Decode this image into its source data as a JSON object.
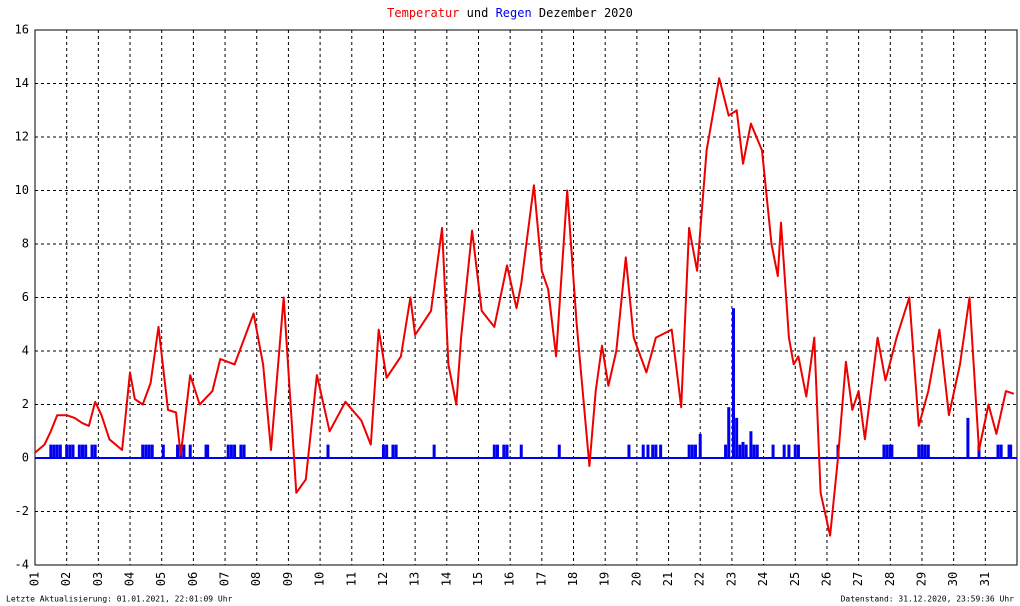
{
  "chart_data": {
    "type": "line",
    "title": [
      "Temperatur",
      "und",
      "Regen",
      "Dezember 2020"
    ],
    "footer": {
      "left": "Letzte Aktualisierung: 01.01.2021, 22:01:09 Uhr",
      "right": "Datenstand: 31.12.2020, 23:59:36 Uhr"
    },
    "xlim": [
      1,
      32
    ],
    "xticks": [
      {
        "value": 1,
        "label": "01"
      },
      {
        "value": 2,
        "label": "02"
      },
      {
        "value": 3,
        "label": "03"
      },
      {
        "value": 4,
        "label": "04"
      },
      {
        "value": 5,
        "label": "05"
      },
      {
        "value": 6,
        "label": "06"
      },
      {
        "value": 7,
        "label": "07"
      },
      {
        "value": 8,
        "label": "08"
      },
      {
        "value": 9,
        "label": "09"
      },
      {
        "value": 10,
        "label": "10"
      },
      {
        "value": 11,
        "label": "11"
      },
      {
        "value": 12,
        "label": "12"
      },
      {
        "value": 13,
        "label": "13"
      },
      {
        "value": 14,
        "label": "14"
      },
      {
        "value": 15,
        "label": "15"
      },
      {
        "value": 16,
        "label": "16"
      },
      {
        "value": 17,
        "label": "17"
      },
      {
        "value": 18,
        "label": "18"
      },
      {
        "value": 19,
        "label": "19"
      },
      {
        "value": 20,
        "label": "20"
      },
      {
        "value": 21,
        "label": "21"
      },
      {
        "value": 22,
        "label": "22"
      },
      {
        "value": 23,
        "label": "23"
      },
      {
        "value": 24,
        "label": "24"
      },
      {
        "value": 25,
        "label": "25"
      },
      {
        "value": 26,
        "label": "26"
      },
      {
        "value": 27,
        "label": "27"
      },
      {
        "value": 28,
        "label": "28"
      },
      {
        "value": 29,
        "label": "29"
      },
      {
        "value": 30,
        "label": "30"
      },
      {
        "value": 31,
        "label": "31"
      }
    ],
    "ylim": [
      -4,
      16
    ],
    "yticks": [
      -4,
      -2,
      0,
      2,
      4,
      6,
      8,
      10,
      12,
      14,
      16
    ],
    "grid": true,
    "series": [
      {
        "name": "Temperatur",
        "color": "#ee0000",
        "type": "line",
        "x": [
          1.0,
          1.3,
          1.5,
          1.7,
          2.0,
          2.25,
          2.5,
          2.7,
          2.9,
          3.1,
          3.35,
          3.75,
          4.0,
          4.15,
          4.4,
          4.65,
          4.9,
          5.2,
          5.45,
          5.6,
          5.9,
          6.2,
          6.6,
          6.85,
          7.3,
          7.9,
          8.2,
          8.45,
          8.85,
          9.25,
          9.55,
          9.9,
          10.3,
          10.8,
          11.3,
          11.6,
          11.85,
          12.1,
          12.55,
          12.85,
          13.0,
          13.5,
          13.85,
          14.05,
          14.3,
          14.45,
          14.8,
          15.1,
          15.5,
          15.9,
          16.2,
          16.35,
          16.75,
          17.0,
          17.2,
          17.45,
          17.8,
          18.1,
          18.5,
          18.7,
          18.9,
          19.1,
          19.35,
          19.65,
          19.9,
          20.3,
          20.6,
          21.1,
          21.4,
          21.65,
          21.9,
          22.2,
          22.6,
          22.9,
          23.15,
          23.35,
          23.6,
          23.95,
          24.25,
          24.45,
          24.55,
          24.8,
          24.95,
          25.1,
          25.35,
          25.6,
          25.8,
          26.1,
          26.35,
          26.6,
          26.8,
          27.0,
          27.2,
          27.6,
          27.85,
          28.2,
          28.6,
          28.9,
          29.2,
          29.55,
          29.85,
          30.2,
          30.5,
          30.8,
          31.1,
          31.35,
          31.65,
          31.9
        ],
        "values": [
          0.2,
          0.5,
          1.0,
          1.6,
          1.6,
          1.5,
          1.3,
          1.2,
          2.1,
          1.6,
          0.7,
          0.3,
          3.2,
          2.2,
          2.0,
          2.8,
          4.9,
          1.8,
          1.7,
          0.1,
          3.1,
          2.0,
          2.5,
          3.7,
          3.5,
          5.4,
          3.5,
          0.3,
          6.0,
          -1.3,
          -0.8,
          3.1,
          1.0,
          2.1,
          1.4,
          0.5,
          4.8,
          3.0,
          3.8,
          6.0,
          4.6,
          5.5,
          8.6,
          3.5,
          2.0,
          4.5,
          8.5,
          5.5,
          4.9,
          7.2,
          5.6,
          6.5,
          10.2,
          7.0,
          6.3,
          3.8,
          10.0,
          5.0,
          -0.3,
          2.5,
          4.2,
          2.7,
          4.0,
          7.5,
          4.5,
          3.2,
          4.5,
          4.8,
          1.9,
          8.6,
          7.0,
          11.5,
          14.2,
          12.8,
          13.0,
          11.0,
          12.5,
          11.5,
          8.0,
          6.8,
          8.8,
          4.5,
          3.5,
          3.8,
          2.3,
          4.5,
          -1.3,
          -2.9,
          0.0,
          3.6,
          1.8,
          2.5,
          0.7,
          4.5,
          2.9,
          4.5,
          6.0,
          1.2,
          2.5,
          4.8,
          1.6,
          3.5,
          6.0,
          0.3,
          2.0,
          0.9,
          2.5,
          2.4
        ]
      },
      {
        "name": "Regen",
        "color": "#0000ee",
        "type": "bar",
        "x": [
          1.5,
          1.6,
          1.7,
          1.8,
          2.0,
          2.1,
          2.2,
          2.4,
          2.5,
          2.6,
          2.8,
          2.9,
          4.4,
          4.5,
          4.6,
          4.7,
          5.05,
          5.5,
          5.6,
          5.7,
          5.9,
          6.4,
          6.45,
          7.1,
          7.2,
          7.3,
          7.5,
          7.6,
          10.25,
          12.0,
          12.1,
          12.3,
          12.4,
          13.6,
          15.5,
          15.6,
          15.8,
          15.9,
          16.35,
          17.55,
          19.75,
          20.2,
          20.35,
          20.5,
          20.6,
          20.75,
          21.65,
          21.75,
          21.85,
          22.0,
          22.8,
          22.9,
          23.05,
          23.15,
          23.25,
          23.35,
          23.45,
          23.6,
          23.7,
          23.8,
          24.3,
          24.65,
          24.8,
          25.0,
          25.1,
          26.35,
          27.8,
          27.9,
          28.0,
          28.05,
          28.9,
          29.0,
          29.1,
          29.2,
          30.45,
          30.8,
          31.4,
          31.5,
          31.75,
          31.8
        ],
        "values": [
          0.5,
          0.5,
          0.5,
          0.5,
          0.5,
          0.5,
          0.5,
          0.5,
          0.5,
          0.5,
          0.5,
          0.5,
          0.5,
          0.5,
          0.5,
          0.5,
          0.5,
          0.5,
          0.5,
          0.5,
          0.5,
          0.5,
          0.5,
          0.5,
          0.5,
          0.5,
          0.5,
          0.5,
          0.5,
          0.5,
          0.5,
          0.5,
          0.5,
          0.5,
          0.5,
          0.5,
          0.5,
          0.5,
          0.5,
          0.5,
          0.5,
          0.5,
          0.5,
          0.5,
          0.5,
          0.5,
          0.5,
          0.5,
          0.5,
          0.9,
          0.5,
          1.9,
          5.6,
          1.5,
          0.5,
          0.6,
          0.5,
          1.0,
          0.5,
          0.5,
          0.5,
          0.5,
          0.5,
          0.5,
          0.5,
          0.5,
          0.5,
          0.5,
          0.5,
          0.5,
          0.5,
          0.5,
          0.5,
          0.5,
          1.5,
          0.5,
          0.5,
          0.5,
          0.5,
          0.5
        ]
      }
    ]
  }
}
